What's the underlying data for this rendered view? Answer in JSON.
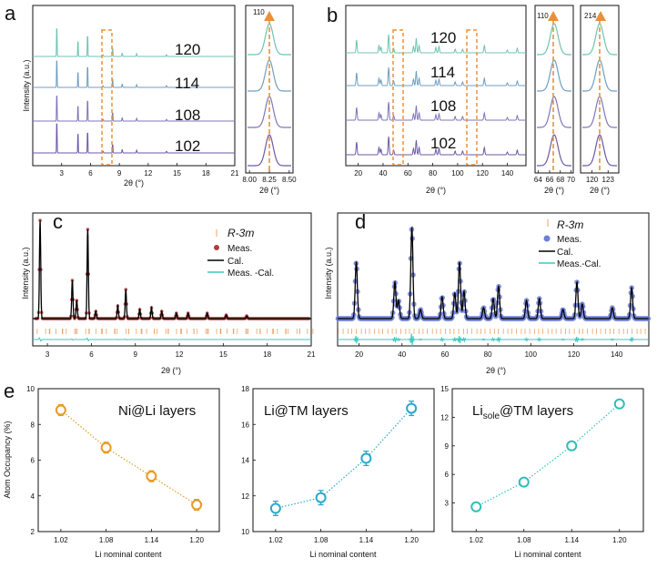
{
  "panel_letters": [
    "a",
    "b",
    "c",
    "d",
    "e"
  ],
  "chart_data": [
    {
      "id": "a_main",
      "type": "line",
      "title": "",
      "xlabel": "2θ (°)",
      "ylabel": "Intensity (a.u.)",
      "xlim": [
        0,
        21
      ],
      "xticks": [
        "3",
        "6",
        "9",
        "12",
        "15",
        "18",
        "21"
      ],
      "series": [
        {
          "name": "120",
          "color": "#6fc3b2"
        },
        {
          "name": "114",
          "color": "#6f9fc2"
        },
        {
          "name": "108",
          "color": "#7e77b8"
        },
        {
          "name": "102",
          "color": "#6e59a8"
        }
      ],
      "peaks_2theta": [
        2.5,
        4.7,
        5.7,
        8.3
      ],
      "highlight_range": [
        7.9,
        8.6
      ]
    },
    {
      "id": "a_inset",
      "type": "line",
      "label": "110",
      "xlabel": "2θ (°)",
      "xlim": [
        8.0,
        8.5
      ],
      "xticks": [
        "8.00",
        "8.25",
        "8.50"
      ],
      "peak_center": 8.25
    },
    {
      "id": "b_main",
      "type": "line",
      "xlabel": "2θ (°)",
      "xlim": [
        10,
        155
      ],
      "xticks": [
        "20",
        "40",
        "60",
        "80",
        "100",
        "120",
        "140"
      ],
      "series": [
        {
          "name": "120",
          "color": "#6fc3b2"
        },
        {
          "name": "114",
          "color": "#6f9fc2"
        },
        {
          "name": "108",
          "color": "#7e77b8"
        },
        {
          "name": "102",
          "color": "#6e59a8"
        }
      ],
      "highlight_ranges": [
        [
          62,
          72
        ],
        [
          116,
          126
        ]
      ]
    },
    {
      "id": "b_inset1",
      "type": "line",
      "label": "110",
      "xlabel": "2θ (°)",
      "xticks": [
        "64",
        "66",
        "68",
        "70"
      ],
      "peak_center": 66.7
    },
    {
      "id": "b_inset2",
      "type": "line",
      "label": "214",
      "xlabel": "2θ (°)",
      "xticks": [
        "120",
        "123"
      ],
      "peak_center": 121.5
    },
    {
      "id": "c",
      "type": "scatter",
      "xlabel": "2θ (°)",
      "ylabel": "Intensity (a.u.)",
      "xlim": [
        2,
        21
      ],
      "xticks": [
        "3",
        "6",
        "9",
        "12",
        "15",
        "18",
        "21"
      ],
      "legend": {
        "space_group": "R-3m",
        "meas": "Meas.",
        "cal": "Cal.",
        "diff": "Meas. -Cal."
      },
      "colors": {
        "meas": "#b23a3a",
        "cal": "#000000",
        "diff": "#3ec9c0",
        "bragg": "#e8a36a"
      }
    },
    {
      "id": "d",
      "type": "scatter",
      "xlabel": "2θ (°)",
      "ylabel": "Intensity (a.u.)",
      "xlim": [
        10,
        155
      ],
      "xticks": [
        "20",
        "40",
        "60",
        "80",
        "100",
        "120",
        "140"
      ],
      "legend": {
        "space_group": "R-3m",
        "meas": "Meas.",
        "cal": "Cal.",
        "diff": "Meas.-Cal."
      },
      "colors": {
        "meas": "#6e7fd6",
        "cal": "#000000",
        "diff": "#3ec9c0",
        "bragg": "#e8a36a"
      }
    },
    {
      "id": "e1",
      "type": "scatter",
      "title": "Ni@Li layers",
      "xlabel": "Li nominal content",
      "ylabel": "Atom Occupancy (%)",
      "ylim": [
        2,
        10
      ],
      "xticks": [
        "1.02",
        "1.08",
        "1.14",
        "1.20"
      ],
      "yticks": [
        "2",
        "4",
        "6",
        "8",
        "10"
      ],
      "x": [
        1.02,
        1.08,
        1.14,
        1.2
      ],
      "y": [
        8.8,
        6.7,
        5.1,
        3.5
      ],
      "err": [
        0.3,
        0.3,
        0.3,
        0.3
      ],
      "color": "#e69b24"
    },
    {
      "id": "e2",
      "type": "scatter",
      "title": "Li@TM layers",
      "xlabel": "Li nominal content",
      "ylim": [
        10,
        18
      ],
      "xticks": [
        "1.02",
        "1.08",
        "1.14",
        "1.20"
      ],
      "yticks": [
        "10",
        "12",
        "14",
        "16",
        "18"
      ],
      "x": [
        1.02,
        1.08,
        1.14,
        1.2
      ],
      "y": [
        11.3,
        11.9,
        14.1,
        16.9
      ],
      "err": [
        0.4,
        0.4,
        0.4,
        0.4
      ],
      "color": "#2aa8c9"
    },
    {
      "id": "e3",
      "type": "scatter",
      "title": "Lisole@TM layers",
      "title_main": "Li",
      "title_sub": "sole",
      "title_rest": "@TM layers",
      "xlabel": "Li nominal content",
      "ylim": [
        0,
        15
      ],
      "xticks": [
        "1.02",
        "1.08",
        "1.14",
        "1.20"
      ],
      "yticks": [
        "3",
        "6",
        "9",
        "12",
        "15"
      ],
      "x": [
        1.02,
        1.08,
        1.14,
        1.2
      ],
      "y": [
        2.6,
        5.2,
        9.0,
        13.4
      ],
      "err": [
        0.2,
        0.2,
        0.2,
        0.2
      ],
      "color": "#2cbfb7"
    }
  ]
}
